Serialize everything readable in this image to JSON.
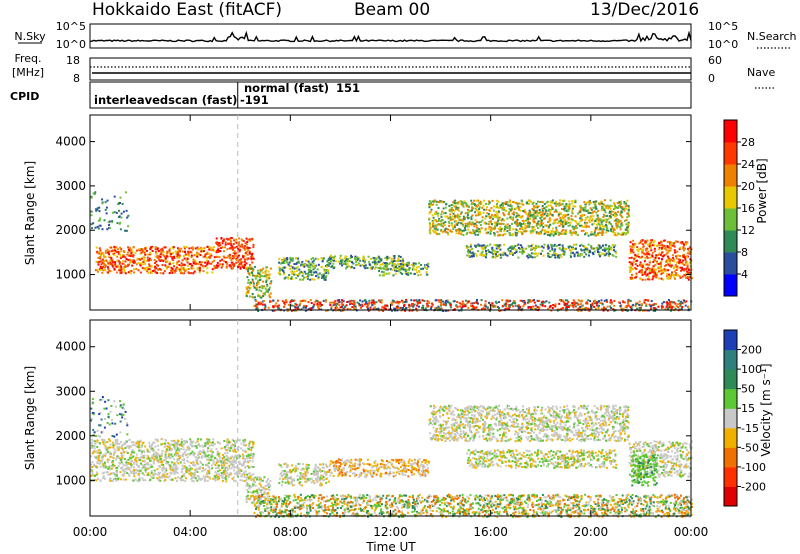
{
  "header": {
    "station": "Hokkaido East (fitACF)",
    "beam": "Beam 00",
    "date": "13/Dec/2016"
  },
  "noise_panel": {
    "left_label": "N.Sky",
    "left_ticks": [
      "10^5",
      "10^0"
    ],
    "right_ticks": [
      "10^5",
      "10^0"
    ],
    "right_label": "N.Search"
  },
  "freq_panel": {
    "left_label_1": "Freq.",
    "left_label_2": "[MHz]",
    "left_ticks": [
      "18",
      "8"
    ],
    "right_ticks": [
      "60",
      "0"
    ],
    "right_label": "Nave"
  },
  "cpid_panel": {
    "label": "CPID",
    "modes": [
      {
        "name": "interleavedscan (fast)",
        "id": "-191"
      },
      {
        "name": "normal (fast)",
        "id": "151"
      }
    ]
  },
  "chart_data": [
    {
      "type": "heatmap",
      "name": "power",
      "xlabel": "",
      "ylabel": "Slant Range [km]",
      "yticks": [
        "1000",
        "2000",
        "3000",
        "4000"
      ],
      "ylim": [
        200,
        4600
      ],
      "colorbar": {
        "label": "Power [dB]",
        "ticks": [
          "4",
          "8",
          "12",
          "16",
          "20",
          "24",
          "28"
        ],
        "colors": [
          "#0000ff",
          "#2a4d9e",
          "#2e8b57",
          "#6dbf3a",
          "#e8c800",
          "#f08000",
          "#ff3800",
          "#ff0000"
        ]
      }
    },
    {
      "type": "heatmap",
      "name": "velocity",
      "xlabel": "Time UT",
      "ylabel": "Slant Range [km]",
      "yticks": [
        "1000",
        "2000",
        "3000",
        "4000"
      ],
      "ylim": [
        200,
        4600
      ],
      "xticks": [
        "00:00",
        "04:00",
        "08:00",
        "12:00",
        "16:00",
        "20:00",
        "00:00"
      ],
      "colorbar": {
        "label": "Velocity [m s⁻¹]",
        "ticks": [
          "200",
          "100",
          "50",
          "15",
          "-15",
          "-50",
          "-100",
          "-200"
        ],
        "colors": [
          "#1c3fb5",
          "#2f7f7f",
          "#2e8b57",
          "#5cc832",
          "#c8c8c8",
          "#f0b000",
          "#f07000",
          "#ff3000",
          "#e00000"
        ]
      }
    }
  ],
  "echo_regions": {
    "power": [
      {
        "t0": 0.2,
        "t1": 5.0,
        "r0": 1050,
        "r1": 1650,
        "tone": "high"
      },
      {
        "t0": 5.0,
        "t1": 6.5,
        "r0": 1150,
        "r1": 1850,
        "tone": "max"
      },
      {
        "t0": 6.2,
        "t1": 7.2,
        "r0": 500,
        "r1": 1200,
        "tone": "mid"
      },
      {
        "t0": 7.5,
        "t1": 9.5,
        "r0": 900,
        "r1": 1400,
        "tone": "low"
      },
      {
        "t0": 9.5,
        "t1": 12.5,
        "r0": 1150,
        "r1": 1450,
        "tone": "low"
      },
      {
        "t0": 11.5,
        "t1": 13.5,
        "r0": 1000,
        "r1": 1300,
        "tone": "low"
      },
      {
        "t0": 13.5,
        "t1": 21.5,
        "r0": 1900,
        "r1": 2700,
        "tone": "mid"
      },
      {
        "t0": 15.0,
        "t1": 21.0,
        "r0": 1400,
        "r1": 1700,
        "tone": "low"
      },
      {
        "t0": 21.5,
        "t1": 24.0,
        "r0": 900,
        "r1": 1800,
        "tone": "high"
      },
      {
        "t0": 0.0,
        "t1": 1.5,
        "r0": 2000,
        "r1": 2900,
        "tone": "sparse"
      },
      {
        "t0": 6.5,
        "t1": 24.0,
        "r0": 200,
        "r1": 450,
        "tone": "ground"
      }
    ],
    "velocity": [
      {
        "t0": 0.0,
        "t1": 6.5,
        "r0": 1000,
        "r1": 1950,
        "tone": "gray"
      },
      {
        "t0": 6.2,
        "t1": 7.2,
        "r0": 500,
        "r1": 1100,
        "tone": "gray"
      },
      {
        "t0": 7.5,
        "t1": 9.5,
        "r0": 900,
        "r1": 1400,
        "tone": "gray"
      },
      {
        "t0": 9.5,
        "t1": 13.5,
        "r0": 1100,
        "r1": 1500,
        "tone": "orange"
      },
      {
        "t0": 13.5,
        "t1": 21.5,
        "r0": 1900,
        "r1": 2700,
        "tone": "gray"
      },
      {
        "t0": 15.0,
        "t1": 21.0,
        "r0": 1300,
        "r1": 1700,
        "tone": "mixed"
      },
      {
        "t0": 21.5,
        "t1": 24.0,
        "r0": 1100,
        "r1": 1900,
        "tone": "gray"
      },
      {
        "t0": 21.6,
        "t1": 22.6,
        "r0": 900,
        "r1": 1600,
        "tone": "green"
      },
      {
        "t0": 6.5,
        "t1": 24.0,
        "r0": 200,
        "r1": 700,
        "tone": "ground"
      },
      {
        "t0": 0.0,
        "t1": 1.5,
        "r0": 2000,
        "r1": 2900,
        "tone": "sparse"
      }
    ]
  },
  "cpid_change_hour": 5.9,
  "colors": {
    "axis": "#000000",
    "noise_trace": "#000000",
    "dashed_marker": "#bbbbbb"
  }
}
